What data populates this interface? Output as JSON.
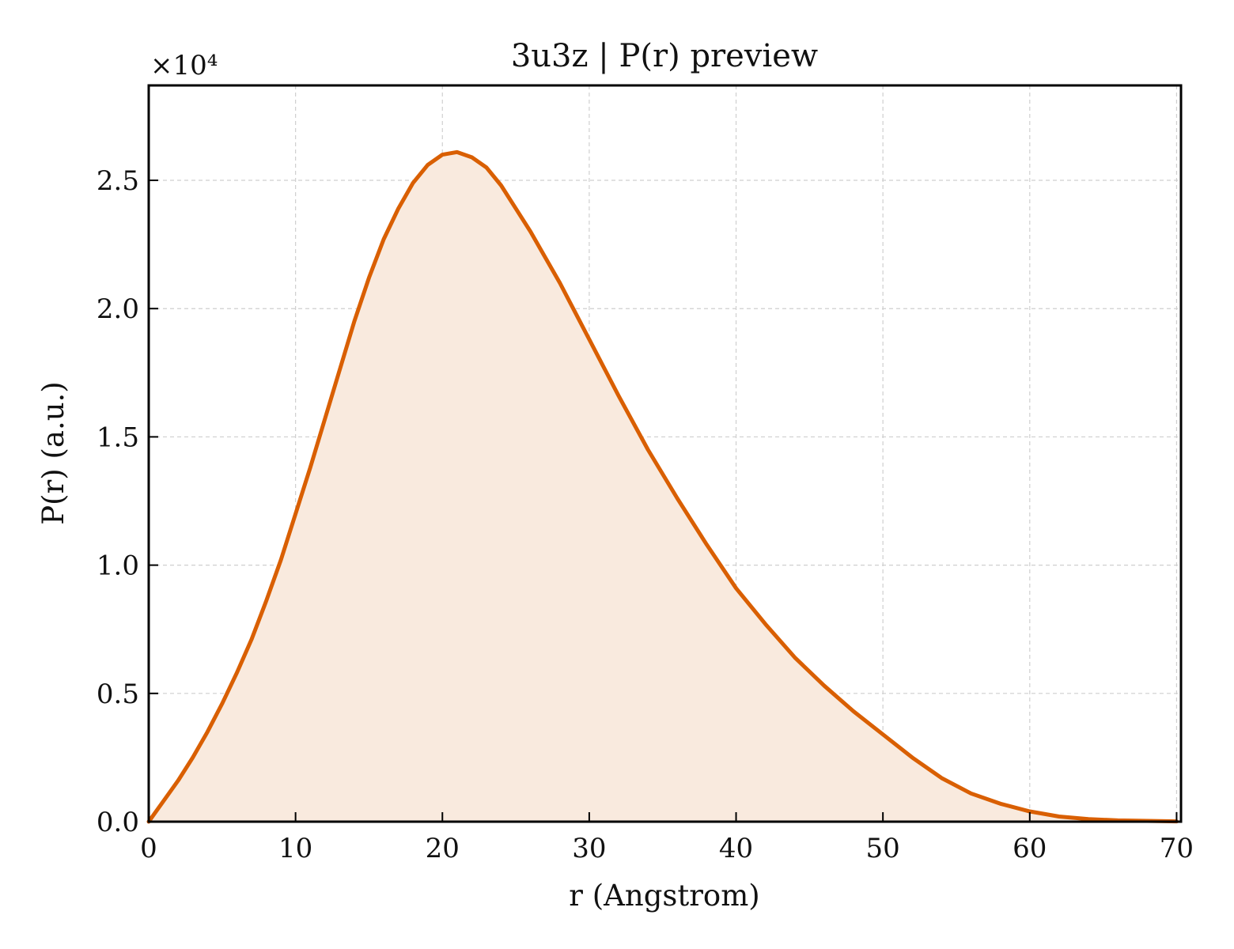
{
  "chart_data": {
    "type": "area",
    "title": "3u3z | P(r) preview",
    "xlabel": "r (Angstrom)",
    "ylabel": "P(r) (a.u.)",
    "y_offset_text": "×10⁴",
    "y_multiplier": 10000,
    "xlim": [
      0,
      70.3
    ],
    "ylim": [
      0,
      2.87
    ],
    "x_ticks": [
      0,
      10,
      20,
      30,
      40,
      50,
      60,
      70
    ],
    "x_tick_labels": [
      "0",
      "10",
      "20",
      "30",
      "40",
      "50",
      "60",
      "70"
    ],
    "y_ticks": [
      0,
      0.5,
      1.0,
      1.5,
      2.0,
      2.5
    ],
    "y_tick_labels": [
      "0.0",
      "0.5",
      "1.0",
      "1.5",
      "2.0",
      "2.5"
    ],
    "grid": true,
    "line_color": "#d95f02",
    "fill_color": "#f9eade",
    "series": [
      {
        "x": [
          0,
          1,
          2,
          3,
          4,
          5,
          6,
          7,
          8,
          9,
          10,
          11,
          12,
          13,
          14,
          15,
          16,
          17,
          18,
          19,
          20,
          21,
          22,
          23,
          24,
          25,
          26,
          27,
          28,
          29,
          30,
          32,
          34,
          36,
          38,
          40,
          42,
          44,
          46,
          48,
          50,
          52,
          54,
          56,
          58,
          60,
          62,
          64,
          66,
          68,
          70
        ],
        "y": [
          0.0,
          0.08,
          0.16,
          0.25,
          0.35,
          0.46,
          0.58,
          0.71,
          0.86,
          1.02,
          1.2,
          1.38,
          1.57,
          1.76,
          1.95,
          2.12,
          2.27,
          2.39,
          2.49,
          2.56,
          2.6,
          2.61,
          2.59,
          2.55,
          2.48,
          2.39,
          2.3,
          2.2,
          2.1,
          1.99,
          1.88,
          1.66,
          1.45,
          1.26,
          1.08,
          0.91,
          0.77,
          0.64,
          0.53,
          0.43,
          0.34,
          0.25,
          0.17,
          0.11,
          0.07,
          0.04,
          0.02,
          0.01,
          0.005,
          0.003,
          0.001
        ]
      }
    ]
  }
}
